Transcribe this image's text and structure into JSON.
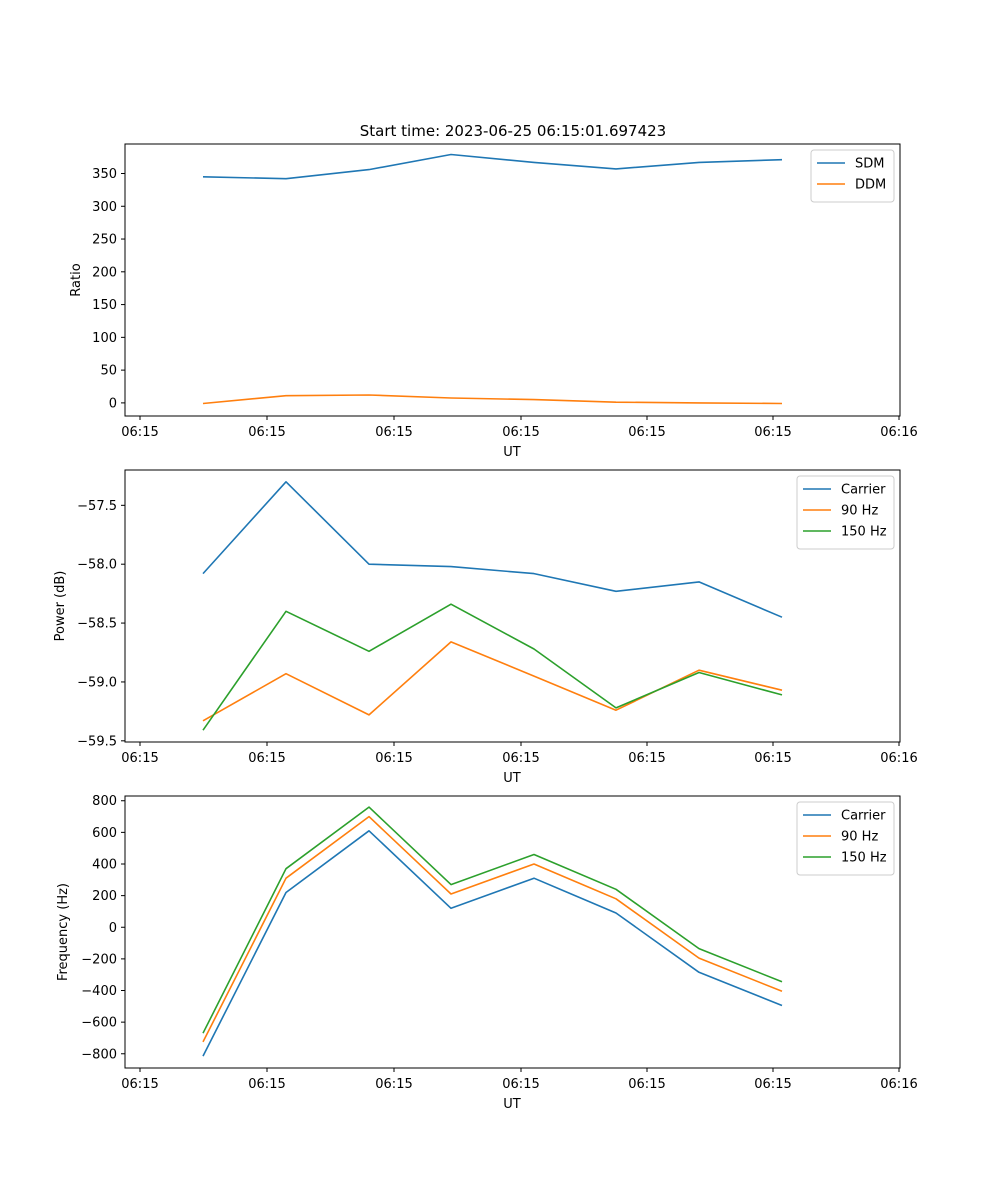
{
  "figure_title": "Start time: 2023-06-25 06:15:01.697423",
  "colors": {
    "blue": "#1f77b4",
    "orange": "#ff7f0e",
    "green": "#2ca02c"
  },
  "chart_data": [
    {
      "type": "line",
      "title": "Start time: 2023-06-25 06:15:01.697423",
      "xlabel": "UT",
      "ylabel": "Ratio",
      "x_tick_labels": [
        "06:15",
        "06:15",
        "06:15",
        "06:15",
        "06:15",
        "06:15",
        "06:16"
      ],
      "y_ticks": [
        0,
        50,
        100,
        150,
        200,
        250,
        300,
        350
      ],
      "ylim": [
        -20,
        395
      ],
      "legend_position": "upper right",
      "series": [
        {
          "name": "SDM",
          "color": "#1f77b4",
          "values": [
            345,
            342,
            356,
            379,
            367,
            357,
            367,
            371
          ]
        },
        {
          "name": "DDM",
          "color": "#ff7f0e",
          "values": [
            -1,
            11,
            12,
            7.5,
            5,
            1,
            0,
            -1
          ]
        }
      ]
    },
    {
      "type": "line",
      "xlabel": "UT",
      "ylabel": "Power (dB)",
      "x_tick_labels": [
        "06:15",
        "06:15",
        "06:15",
        "06:15",
        "06:15",
        "06:15",
        "06:16"
      ],
      "y_ticks": [
        -59.5,
        -59.0,
        -58.5,
        -58.0,
        -57.5
      ],
      "y_tick_labels": [
        "−59.5",
        "−59.0",
        "−58.5",
        "−58.0",
        "−57.5"
      ],
      "ylim": [
        -59.51,
        -57.2
      ],
      "legend_position": "upper right",
      "series": [
        {
          "name": "Carrier",
          "color": "#1f77b4",
          "values": [
            -58.08,
            -57.3,
            -58.0,
            -58.02,
            -58.08,
            -58.23,
            -58.15,
            -58.45
          ]
        },
        {
          "name": "90 Hz",
          "color": "#ff7f0e",
          "values": [
            -59.33,
            -58.93,
            -59.28,
            -58.66,
            -58.95,
            -59.24,
            -58.9,
            -59.07
          ]
        },
        {
          "name": "150 Hz",
          "color": "#2ca02c",
          "values": [
            -59.41,
            -58.4,
            -58.74,
            -58.34,
            -58.72,
            -59.22,
            -58.92,
            -59.11
          ]
        }
      ]
    },
    {
      "type": "line",
      "xlabel": "UT",
      "ylabel": "Frequency (Hz)",
      "x_tick_labels": [
        "06:15",
        "06:15",
        "06:15",
        "06:15",
        "06:15",
        "06:15",
        "06:16"
      ],
      "y_ticks": [
        -800,
        -600,
        -400,
        -200,
        0,
        200,
        400,
        600,
        800
      ],
      "y_tick_labels": [
        "−800",
        "−600",
        "−400",
        "−200",
        "0",
        "200",
        "400",
        "600",
        "800"
      ],
      "ylim": [
        -890,
        830
      ],
      "legend_position": "upper right",
      "series": [
        {
          "name": "Carrier",
          "color": "#1f77b4",
          "values": [
            -815,
            220,
            610,
            120,
            310,
            90,
            -285,
            -495
          ]
        },
        {
          "name": "90 Hz",
          "color": "#ff7f0e",
          "values": [
            -725,
            310,
            700,
            210,
            400,
            180,
            -195,
            -405
          ]
        },
        {
          "name": "150 Hz",
          "color": "#2ca02c",
          "values": [
            -670,
            370,
            760,
            270,
            460,
            240,
            -135,
            -345
          ]
        }
      ]
    }
  ]
}
